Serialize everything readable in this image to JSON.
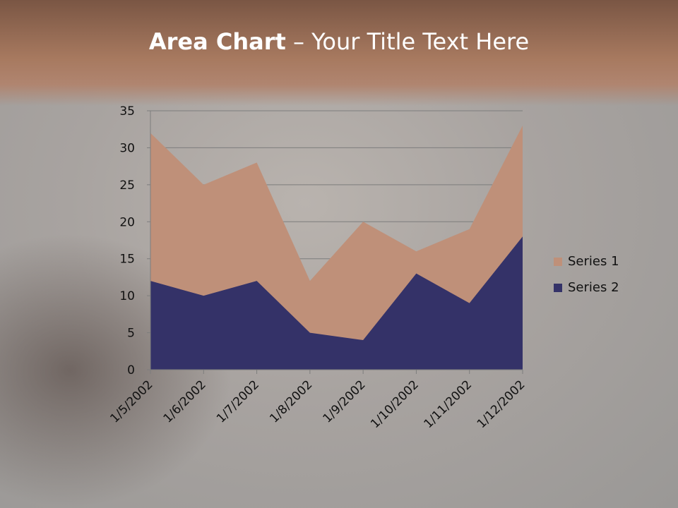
{
  "title": {
    "bold": "Area Chart",
    "rest": " – Your Title Text Here"
  },
  "colors": {
    "series1": "#bf9079",
    "series2": "#343268"
  },
  "chart_data": {
    "type": "area",
    "title": "",
    "xlabel": "",
    "ylabel": "",
    "categories": [
      "1/5/2002",
      "1/6/2002",
      "1/7/2002",
      "1/8/2002",
      "1/9/2002",
      "1/10/2002",
      "1/11/2002",
      "1/12/2002"
    ],
    "series": [
      {
        "name": "Series 1",
        "values": [
          32,
          25,
          28,
          12,
          20,
          16,
          19,
          33
        ]
      },
      {
        "name": "Series 2",
        "values": [
          12,
          10,
          12,
          5,
          4,
          13,
          9,
          18
        ]
      }
    ],
    "ylim": [
      0,
      35
    ],
    "yticks": [
      "0",
      "5",
      "10",
      "15",
      "20",
      "25",
      "30",
      "35"
    ],
    "grid": true,
    "legend": "right"
  }
}
